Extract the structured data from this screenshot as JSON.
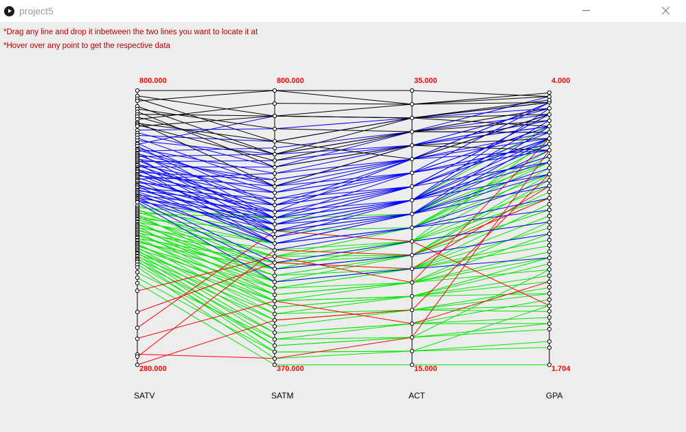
{
  "window": {
    "title": "project5",
    "icon": "play-circle-icon"
  },
  "instructions": [
    "*Drag any line and drop it inbetween the two lines you want to locate it at",
    "*Hover over any point to get the respective data"
  ],
  "colors": {
    "top_group": "#000000",
    "high_group": "#0000ff",
    "mid_group": "#00e600",
    "low_group": "#ff0000",
    "range_label": "#ff0000",
    "axis": "#000000"
  },
  "chart_data": {
    "type": "parallel_coordinates",
    "axes": [
      {
        "name": "SATV",
        "min": 280,
        "max": 800,
        "min_label": "280.000",
        "max_label": "800.000"
      },
      {
        "name": "SATM",
        "min": 370,
        "max": 800,
        "min_label": "370.000",
        "max_label": "800.000"
      },
      {
        "name": "ACT",
        "min": 15,
        "max": 35,
        "min_label": "15.000",
        "max_label": "35.000"
      },
      {
        "name": "GPA",
        "min": 1.704,
        "max": 4.0,
        "min_label": "1.704",
        "max_label": "4.000"
      }
    ],
    "series": [
      {
        "group": "top",
        "rows": [
          [
            800,
            800,
            35,
            3.95
          ],
          [
            790,
            760,
            34,
            3.9
          ],
          [
            785,
            720,
            33,
            3.8
          ],
          [
            780,
            800,
            34,
            3.98
          ],
          [
            770,
            700,
            33,
            3.7
          ],
          [
            765,
            740,
            32,
            3.85
          ],
          [
            760,
            680,
            31,
            3.6
          ],
          [
            755,
            760,
            33,
            3.9
          ],
          [
            750,
            700,
            32,
            3.75
          ],
          [
            745,
            780,
            34,
            3.95
          ],
          [
            740,
            650,
            31,
            3.5
          ],
          [
            738,
            720,
            30,
            3.8
          ],
          [
            735,
            690,
            32,
            3.65
          ],
          [
            732,
            760,
            33,
            3.92
          ]
        ]
      },
      {
        "group": "high",
        "rows": [
          [
            725,
            740,
            33,
            3.9
          ],
          [
            720,
            680,
            32,
            3.8
          ],
          [
            715,
            720,
            33,
            3.85
          ],
          [
            710,
            650,
            31,
            3.7
          ],
          [
            705,
            700,
            32,
            3.95
          ],
          [
            700,
            620,
            30,
            3.6
          ],
          [
            698,
            760,
            33,
            3.9
          ],
          [
            695,
            600,
            29,
            3.5
          ],
          [
            690,
            670,
            31,
            3.75
          ],
          [
            688,
            640,
            30,
            3.8
          ],
          [
            685,
            710,
            32,
            3.65
          ],
          [
            682,
            590,
            28,
            3.4
          ],
          [
            680,
            650,
            30,
            3.9
          ],
          [
            678,
            620,
            29,
            3.55
          ],
          [
            675,
            700,
            31,
            3.7
          ],
          [
            672,
            580,
            27,
            3.3
          ],
          [
            670,
            660,
            30,
            3.8
          ],
          [
            668,
            600,
            28,
            3.6
          ],
          [
            665,
            690,
            31,
            3.75
          ],
          [
            662,
            570,
            27,
            3.45
          ],
          [
            660,
            640,
            29,
            3.9
          ],
          [
            658,
            610,
            30,
            3.5
          ],
          [
            655,
            680,
            31,
            3.85
          ],
          [
            652,
            560,
            26,
            3.2
          ],
          [
            650,
            630,
            29,
            3.7
          ],
          [
            648,
            600,
            28,
            3.6
          ],
          [
            645,
            660,
            30,
            3.65
          ],
          [
            642,
            580,
            27,
            3.4
          ],
          [
            640,
            620,
            28,
            3.8
          ],
          [
            638,
            650,
            29,
            3.55
          ],
          [
            635,
            590,
            27,
            3.75
          ],
          [
            632,
            670,
            30,
            3.9
          ],
          [
            630,
            560,
            26,
            3.3
          ],
          [
            628,
            610,
            28,
            3.6
          ],
          [
            625,
            640,
            29,
            3.7
          ],
          [
            622,
            580,
            26,
            3.5
          ],
          [
            620,
            600,
            27,
            3.85
          ],
          [
            618,
            560,
            25,
            3.1
          ],
          [
            615,
            630,
            28,
            3.65
          ],
          [
            612,
            590,
            27,
            3.45
          ],
          [
            610,
            620,
            28,
            3.8
          ],
          [
            608,
            570,
            26,
            3.35
          ],
          [
            605,
            550,
            25,
            3.0
          ],
          [
            602,
            610,
            27,
            3.6
          ],
          [
            600,
            580,
            26,
            3.7
          ],
          [
            598,
            530,
            24,
            2.9
          ],
          [
            596,
            600,
            27,
            3.55
          ],
          [
            594,
            560,
            25,
            3.25
          ],
          [
            592,
            520,
            23,
            2.8
          ],
          [
            590,
            590,
            26,
            3.6
          ],
          [
            588,
            500,
            22,
            2.6
          ]
        ]
      },
      {
        "group": "mid",
        "rows": [
          [
            582,
            560,
            26,
            3.4
          ],
          [
            578,
            600,
            27,
            3.7
          ],
          [
            575,
            520,
            24,
            3.1
          ],
          [
            572,
            580,
            25,
            3.5
          ],
          [
            570,
            540,
            25,
            3.3
          ],
          [
            567,
            600,
            26,
            3.6
          ],
          [
            565,
            500,
            23,
            3.0
          ],
          [
            562,
            560,
            25,
            3.45
          ],
          [
            560,
            520,
            24,
            2.9
          ],
          [
            557,
            580,
            26,
            3.55
          ],
          [
            555,
            540,
            24,
            3.2
          ],
          [
            552,
            490,
            22,
            2.7
          ],
          [
            550,
            560,
            25,
            3.4
          ],
          [
            547,
            510,
            23,
            3.0
          ],
          [
            545,
            530,
            24,
            3.6
          ],
          [
            542,
            480,
            21,
            2.6
          ],
          [
            540,
            550,
            24,
            3.35
          ],
          [
            537,
            500,
            22,
            2.85
          ],
          [
            535,
            520,
            23,
            3.15
          ],
          [
            532,
            470,
            21,
            2.5
          ],
          [
            530,
            540,
            23,
            3.3
          ],
          [
            527,
            490,
            22,
            2.75
          ],
          [
            525,
            510,
            22,
            3.05
          ],
          [
            522,
            460,
            20,
            2.4
          ],
          [
            520,
            530,
            23,
            3.25
          ],
          [
            517,
            480,
            21,
            2.65
          ],
          [
            515,
            500,
            22,
            2.95
          ],
          [
            512,
            520,
            23,
            3.1
          ],
          [
            510,
            450,
            20,
            2.3
          ],
          [
            507,
            470,
            20,
            2.55
          ],
          [
            505,
            490,
            21,
            2.8
          ],
          [
            502,
            440,
            19,
            2.2
          ],
          [
            500,
            480,
            21,
            2.9
          ],
          [
            497,
            430,
            19,
            2.15
          ],
          [
            495,
            460,
            20,
            2.45
          ],
          [
            492,
            420,
            18,
            2.1
          ],
          [
            490,
            470,
            20,
            2.6
          ],
          [
            487,
            410,
            18,
            2.05
          ],
          [
            485,
            450,
            19,
            2.35
          ],
          [
            482,
            400,
            17,
            2.0
          ],
          [
            480,
            440,
            19,
            2.3
          ],
          [
            477,
            390,
            16,
            1.9
          ],
          [
            475,
            420,
            18,
            2.25
          ],
          [
            470,
            400,
            17,
            2.05
          ],
          [
            465,
            380,
            16,
            1.85
          ],
          [
            455,
            410,
            17,
            2.5
          ],
          [
            445,
            390,
            16,
            2.2
          ],
          [
            435,
            370,
            15,
            1.704
          ]
        ]
      },
      {
        "group": "low",
        "rows": [
          [
            420,
            540,
            21,
            3.6
          ],
          [
            380,
            530,
            22,
            3.2
          ],
          [
            350,
            580,
            24,
            2.2
          ],
          [
            330,
            470,
            18,
            2.4
          ],
          [
            300,
            380,
            17,
            3.5
          ],
          [
            295,
            550,
            23,
            3.1
          ],
          [
            280,
            440,
            19,
            3.3
          ]
        ]
      }
    ]
  }
}
